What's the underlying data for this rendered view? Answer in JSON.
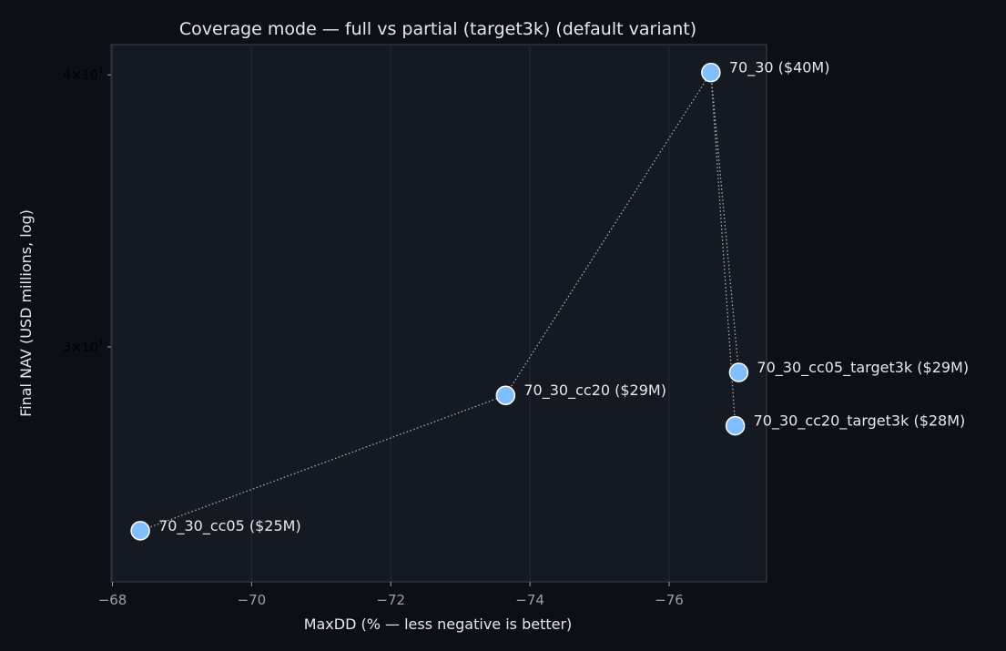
{
  "chart_data": {
    "type": "scatter",
    "title": "Coverage mode — full vs partial (target3k) (default variant)",
    "xlabel": "MaxDD (% — less negative is better)",
    "ylabel": "Final NAV (USD millions, log)",
    "x_inverted": true,
    "y_scale": "log",
    "xlim": [
      -67.98,
      -77.4
    ],
    "ylim": [
      23.4,
      41.3
    ],
    "x_ticks": [
      -68,
      -70,
      -72,
      -74,
      -76
    ],
    "x_tick_labels": [
      "−68",
      "−70",
      "−72",
      "−74",
      "−76"
    ],
    "y_ticks": [
      {
        "value": 30,
        "base": "3×10",
        "exp": "1"
      },
      {
        "value": 40,
        "base": "4×10",
        "exp": "1"
      }
    ],
    "grid": true,
    "marker_color": "#7fbfff",
    "connector_color": "#a8adb5",
    "points": [
      {
        "name": "70_30",
        "x": -76.6,
        "y": 40.1,
        "label": "70_30 ($40M)"
      },
      {
        "name": "70_30_cc05",
        "x": -68.4,
        "y": 24.7,
        "label": "70_30_cc05 ($25M)"
      },
      {
        "name": "70_30_cc20",
        "x": -73.65,
        "y": 28.5,
        "label": "70_30_cc20 ($29M)"
      },
      {
        "name": "70_30_cc05_target3k",
        "x": -77.0,
        "y": 29.2,
        "label": "70_30_cc05_target3k ($29M)"
      },
      {
        "name": "70_30_cc20_target3k",
        "x": -76.95,
        "y": 27.6,
        "label": "70_30_cc20_target3k ($28M)"
      }
    ],
    "connectors": [
      [
        "70_30_cc05",
        "70_30_cc20"
      ],
      [
        "70_30_cc20",
        "70_30"
      ],
      [
        "70_30",
        "70_30_cc05_target3k"
      ],
      [
        "70_30",
        "70_30_cc20_target3k"
      ]
    ]
  }
}
